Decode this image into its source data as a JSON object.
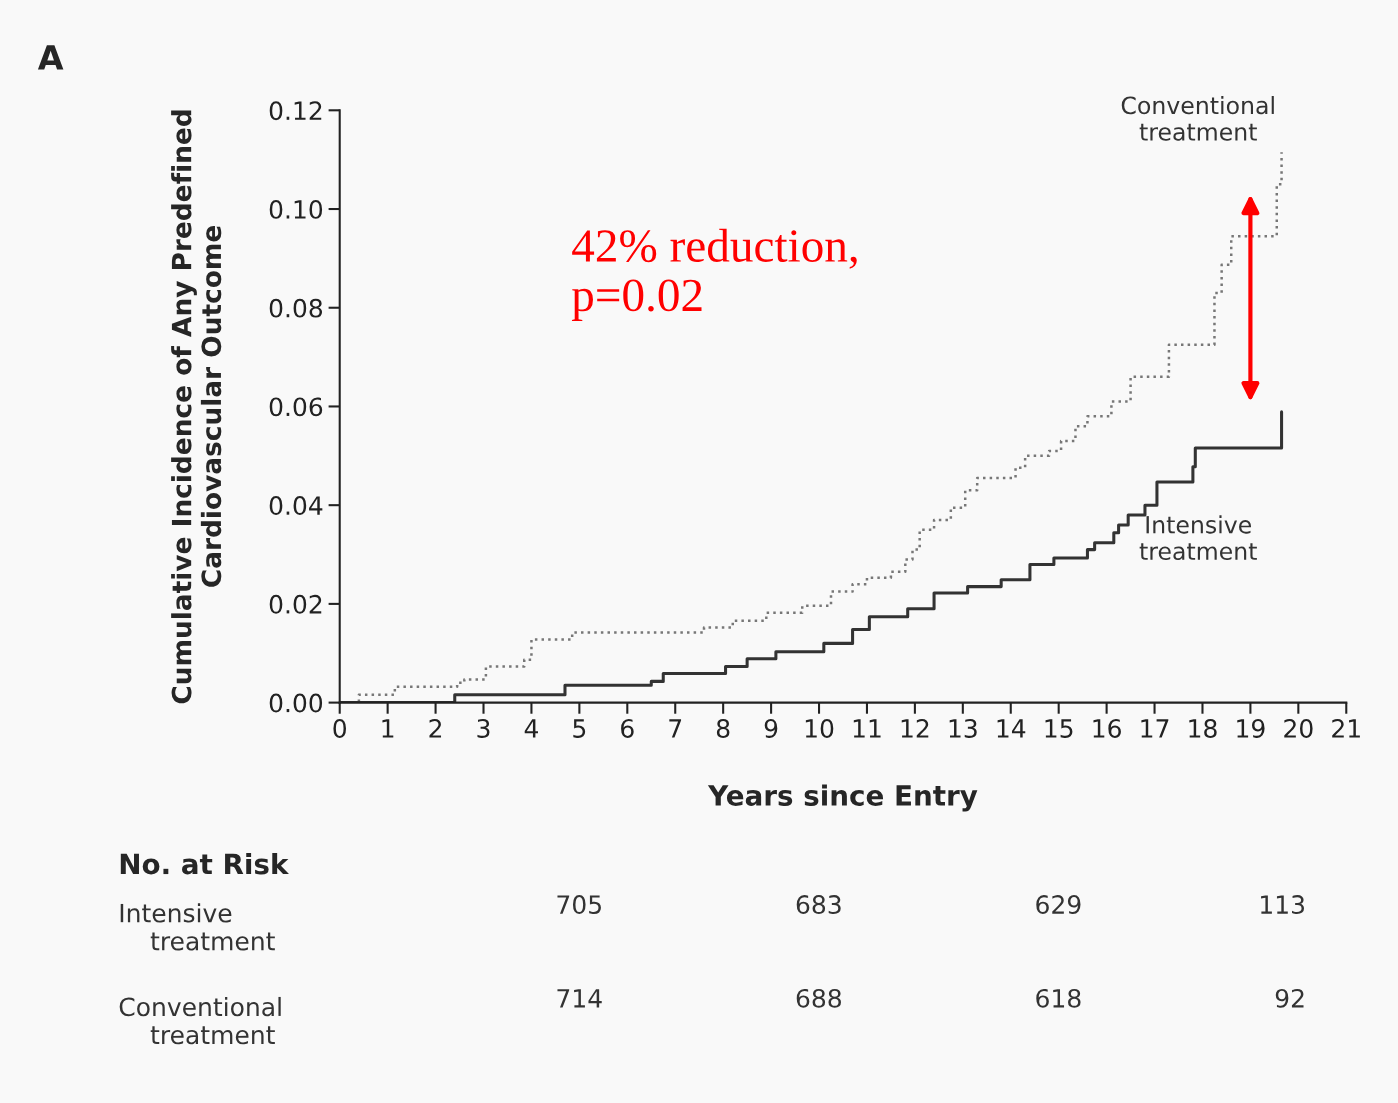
{
  "chart_data": [
    {
      "type": "step",
      "xlabel": "Years since Entry",
      "ylabel": "Cumulative Incidence of Any Predefined\nCardiovascular Outcome",
      "xlim": [
        0,
        21
      ],
      "ylim": [
        0,
        0.12
      ],
      "xticks": [
        0,
        1,
        2,
        3,
        4,
        5,
        6,
        7,
        8,
        9,
        10,
        11,
        12,
        13,
        14,
        15,
        16,
        17,
        18,
        19,
        20,
        21
      ],
      "yticks": [
        {
          "value": 0,
          "label": "0.00"
        },
        {
          "value": 0.02,
          "label": "0.02"
        },
        {
          "value": 0.04,
          "label": "0.04"
        },
        {
          "value": 0.06,
          "label": "0.06"
        },
        {
          "value": 0.08,
          "label": "0.08"
        },
        {
          "value": 0.1,
          "label": "0.10"
        },
        {
          "value": 0.12,
          "label": "0.12"
        }
      ],
      "grid": false,
      "legend": false,
      "annotations": [
        "A",
        "42% reduction,\np=0.02"
      ],
      "series": [
        {
          "name": "Conventional treatment",
          "color": "#777777",
          "line_style": "dotted",
          "x": [
            0,
            0.4,
            1.15,
            2.45,
            2.6,
            3.05,
            3.85,
            4.0,
            4.85,
            7.6,
            8.2,
            8.9,
            9.65,
            10.25,
            10.7,
            11.0,
            11.5,
            11.8,
            11.95,
            12.1,
            12.4,
            12.75,
            13.05,
            13.3,
            14.1,
            14.3,
            14.8,
            15.05,
            15.35,
            15.6,
            16.1,
            16.5,
            17.3,
            18.25,
            18.4,
            18.6,
            19.55,
            19.65
          ],
          "values": [
            0,
            0.0016,
            0.0032,
            0.004,
            0.0047,
            0.0073,
            0.0087,
            0.0128,
            0.0142,
            0.0152,
            0.0166,
            0.0182,
            0.0196,
            0.0225,
            0.024,
            0.0253,
            0.0265,
            0.029,
            0.031,
            0.035,
            0.037,
            0.0395,
            0.043,
            0.0455,
            0.0476,
            0.05,
            0.051,
            0.053,
            0.056,
            0.058,
            0.061,
            0.066,
            0.0725,
            0.083,
            0.0887,
            0.0945,
            0.105,
            0.1115
          ]
        },
        {
          "name": "Intensive treatment",
          "color": "#333333",
          "line_style": "solid",
          "x": [
            0,
            2.4,
            4.7,
            6.5,
            6.75,
            8.05,
            8.5,
            9.1,
            10.1,
            10.7,
            11.05,
            11.85,
            12.4,
            13.1,
            13.8,
            14.4,
            14.9,
            15.6,
            15.75,
            16.15,
            16.25,
            16.45,
            16.8,
            17.05,
            17.8,
            17.85,
            19.65
          ],
          "values": [
            0,
            0.0016,
            0.0035,
            0.0043,
            0.0059,
            0.0073,
            0.0089,
            0.0103,
            0.012,
            0.0148,
            0.0174,
            0.019,
            0.0222,
            0.0235,
            0.0249,
            0.028,
            0.0293,
            0.031,
            0.0324,
            0.0344,
            0.036,
            0.038,
            0.04,
            0.0447,
            0.0478,
            0.0516,
            0.0589
          ]
        }
      ]
    },
    {
      "type": "other",
      "title": "No. at Risk",
      "annotations": [
        "Intensive treatment",
        "705",
        "683",
        "629",
        "113",
        "Conventional treatment",
        "714",
        "688",
        "618",
        "92"
      ]
    }
  ]
}
